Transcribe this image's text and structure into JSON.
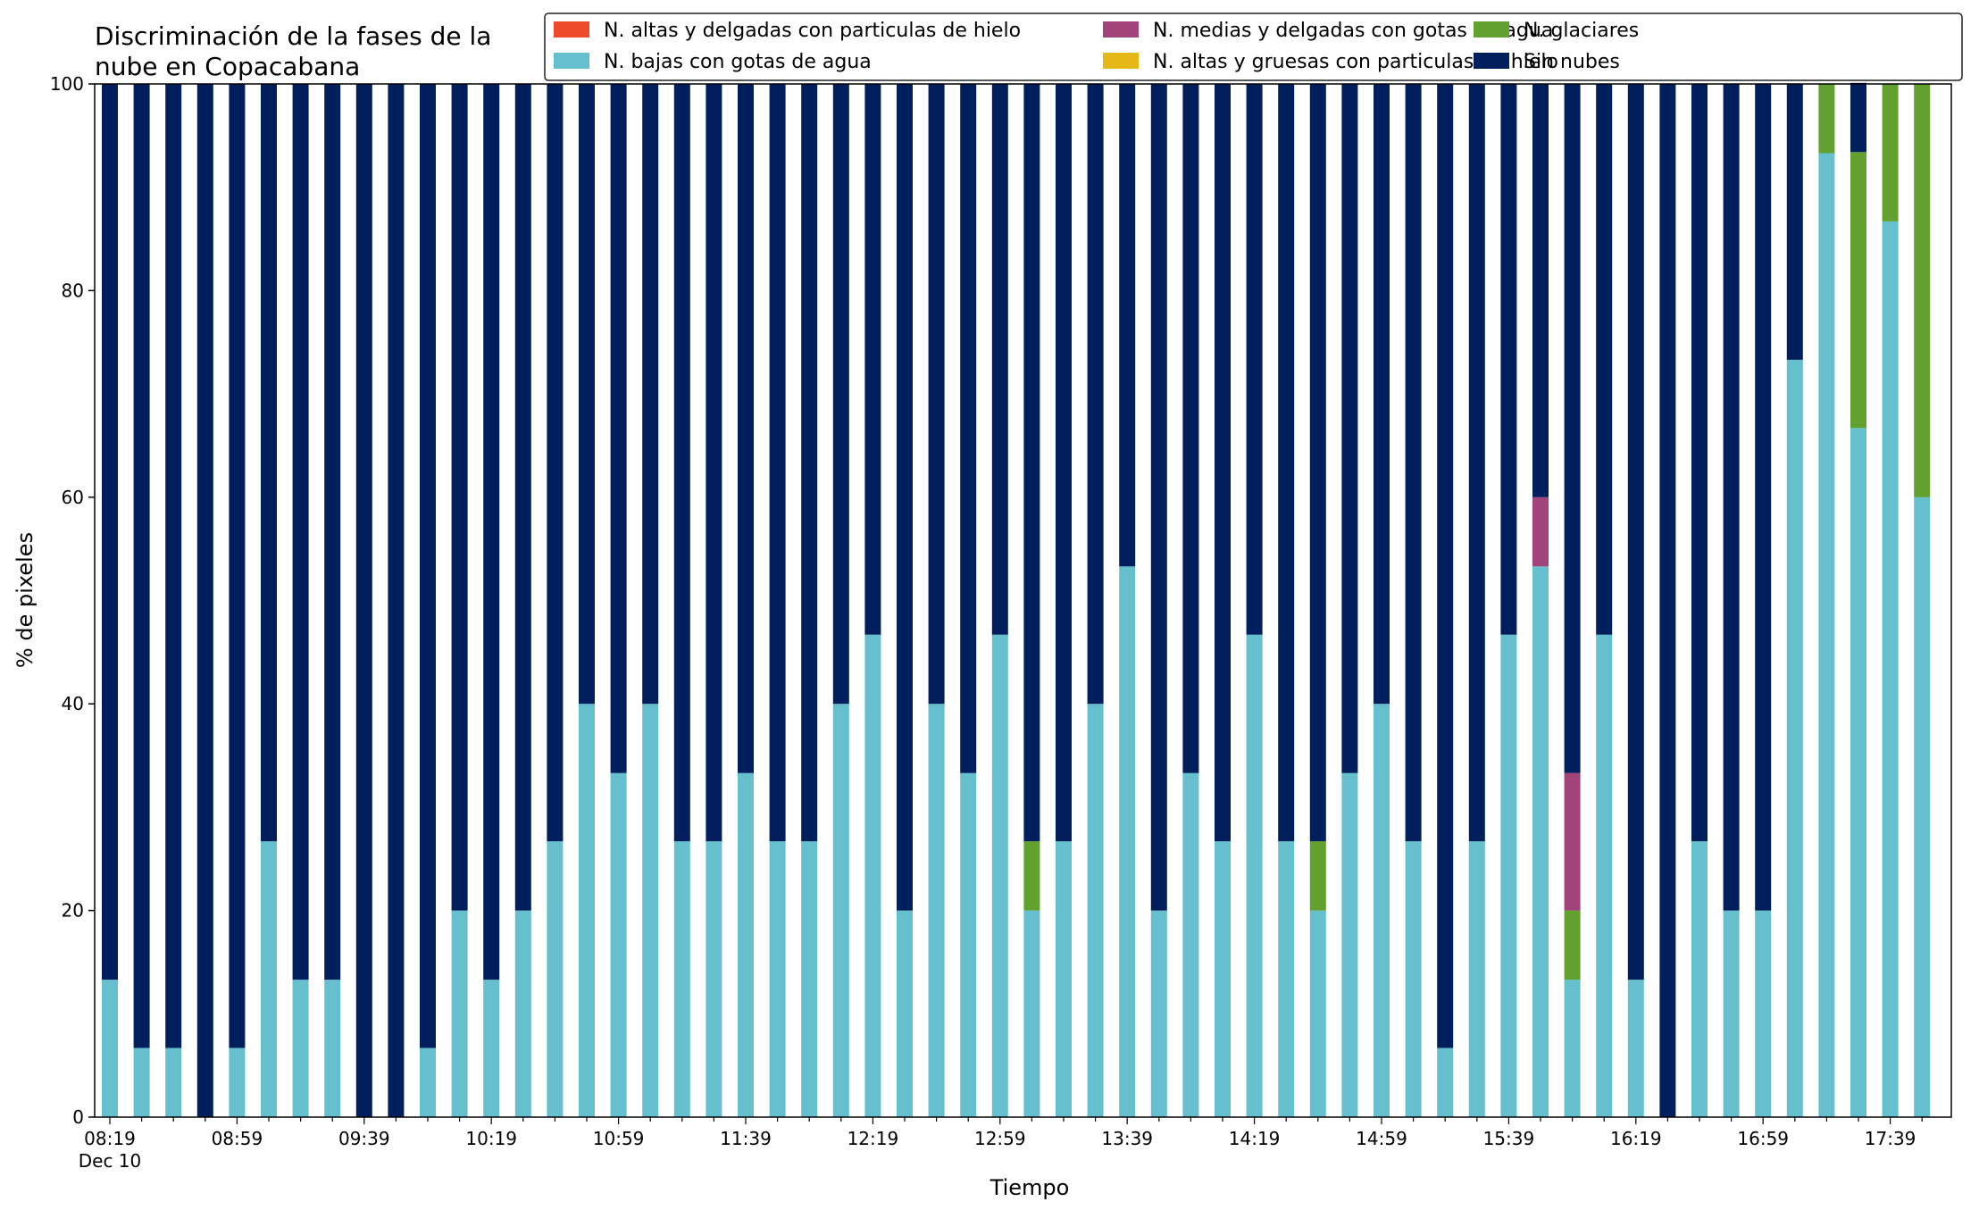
{
  "chart_data": {
    "type": "bar",
    "stacked": true,
    "title_line1": "Discriminación de la fases de la",
    "title_line2": "nube en Copacabana",
    "xlabel": "Tiempo",
    "ylabel": "% de pixeles",
    "ylim": [
      0,
      100
    ],
    "yticks": [
      0,
      20,
      40,
      60,
      80,
      100
    ],
    "xtick_labels": [
      "08:19",
      "08:59",
      "09:39",
      "10:19",
      "10:59",
      "11:39",
      "12:19",
      "12:59",
      "13:39",
      "14:19",
      "14:59",
      "15:39",
      "16:19",
      "16:59",
      "17:39"
    ],
    "xtick_sublabel": "Dec 10",
    "legend_location": "top-right",
    "grid": false,
    "categories": [
      "08:19",
      "08:29",
      "08:39",
      "08:49",
      "08:59",
      "09:09",
      "09:19",
      "09:29",
      "09:39",
      "09:49",
      "09:59",
      "10:09",
      "10:19",
      "10:29",
      "10:39",
      "10:49",
      "10:59",
      "11:09",
      "11:19",
      "11:29",
      "11:39",
      "11:49",
      "11:59",
      "12:09",
      "12:19",
      "12:29",
      "12:39",
      "12:49",
      "12:59",
      "13:09",
      "13:19",
      "13:29",
      "13:39",
      "13:49",
      "13:59",
      "14:09",
      "14:19",
      "14:29",
      "14:39",
      "14:49",
      "14:59",
      "15:09",
      "15:19",
      "15:29",
      "15:39",
      "15:49",
      "15:59",
      "16:09",
      "16:19",
      "16:29",
      "16:39",
      "16:49",
      "16:59",
      "17:09",
      "17:19",
      "17:29",
      "17:39",
      "17:49"
    ],
    "series": [
      {
        "name": "N. altas y delgadas con particulas de hielo",
        "color": "#ee4b2b",
        "values": [
          0,
          0,
          0,
          0,
          0,
          0,
          0,
          0,
          0,
          0,
          0,
          0,
          0,
          0,
          0,
          0,
          0,
          0,
          0,
          0,
          0,
          0,
          0,
          0,
          0,
          0,
          0,
          0,
          0,
          0,
          0,
          0,
          0,
          0,
          0,
          0,
          0,
          0,
          0,
          0,
          0,
          0,
          0,
          0,
          0,
          0,
          0,
          0,
          0,
          0,
          0,
          0,
          0,
          0,
          0,
          0,
          0,
          0
        ]
      },
      {
        "name": "N. altas y gruesas con particulas de hielo",
        "color": "#e6b817",
        "values": [
          0,
          0,
          0,
          0,
          0,
          0,
          0,
          0,
          0,
          0,
          0,
          0,
          0,
          0,
          0,
          0,
          0,
          0,
          0,
          0,
          0,
          0,
          0,
          0,
          0,
          0,
          0,
          0,
          0,
          0,
          0,
          0,
          0,
          0,
          0,
          0,
          0,
          0,
          0,
          0,
          0,
          0,
          0,
          0,
          0,
          0,
          0,
          0,
          0,
          0,
          0,
          0,
          0,
          0,
          0,
          0,
          0,
          0
        ]
      },
      {
        "name": "N. bajas con gotas de agua",
        "color": "#65bfcc",
        "values": [
          13.3,
          6.7,
          6.7,
          0,
          6.7,
          26.7,
          13.3,
          13.3,
          0,
          0,
          6.7,
          20,
          13.3,
          20,
          26.7,
          40,
          33.3,
          40,
          26.7,
          26.7,
          33.3,
          26.7,
          26.7,
          40,
          46.7,
          20,
          40,
          33.3,
          46.7,
          20,
          26.7,
          40,
          53.3,
          20,
          33.3,
          26.7,
          46.7,
          26.7,
          20,
          33.3,
          40,
          26.7,
          6.7,
          26.7,
          46.7,
          53.3,
          13.3,
          46.7,
          13.3,
          0,
          26.7,
          20,
          20,
          73.3,
          93.3,
          66.7,
          86.7,
          60
        ]
      },
      {
        "name": "N. glaciares",
        "color": "#62a12f",
        "values": [
          0,
          0,
          0,
          0,
          0,
          0,
          0,
          0,
          0,
          0,
          0,
          0,
          0,
          0,
          0,
          0,
          0,
          0,
          0,
          0,
          0,
          0,
          0,
          0,
          0,
          0,
          0,
          0,
          0,
          6.7,
          0,
          0,
          0,
          0,
          0,
          0,
          0,
          0,
          6.7,
          0,
          0,
          0,
          0,
          0,
          0,
          0,
          6.7,
          0,
          0,
          0,
          0,
          0,
          0,
          0,
          6.7,
          26.7,
          13.3,
          40
        ]
      },
      {
        "name": "N. medias y delgadas con gotas de agua",
        "color": "#a2437a",
        "values": [
          0,
          0,
          0,
          0,
          0,
          0,
          0,
          0,
          0,
          0,
          0,
          0,
          0,
          0,
          0,
          0,
          0,
          0,
          0,
          0,
          0,
          0,
          0,
          0,
          0,
          0,
          0,
          0,
          0,
          0,
          0,
          0,
          0,
          0,
          0,
          0,
          0,
          0,
          0,
          0,
          0,
          0,
          0,
          0,
          0,
          6.7,
          13.3,
          0,
          0,
          0,
          0,
          0,
          0,
          0,
          0,
          0,
          0,
          0
        ]
      },
      {
        "name": "Sin nubes",
        "color": "#001f5c",
        "values": [
          86.7,
          93.3,
          93.3,
          100,
          93.3,
          73.3,
          86.7,
          86.7,
          100,
          100,
          93.3,
          80,
          86.7,
          80,
          73.3,
          60,
          66.7,
          60,
          73.3,
          73.3,
          66.7,
          73.3,
          73.3,
          60,
          53.3,
          80,
          60,
          66.7,
          53.3,
          73.3,
          73.3,
          60,
          46.7,
          80,
          66.7,
          73.3,
          53.3,
          73.3,
          73.3,
          66.7,
          60,
          73.3,
          93.3,
          73.3,
          53.3,
          40,
          66.7,
          53.3,
          86.7,
          100,
          73.3,
          80,
          80,
          26.7,
          0,
          6.7,
          0,
          0
        ]
      }
    ],
    "legend_order": [
      0,
      2,
      4,
      1,
      3,
      5
    ]
  }
}
